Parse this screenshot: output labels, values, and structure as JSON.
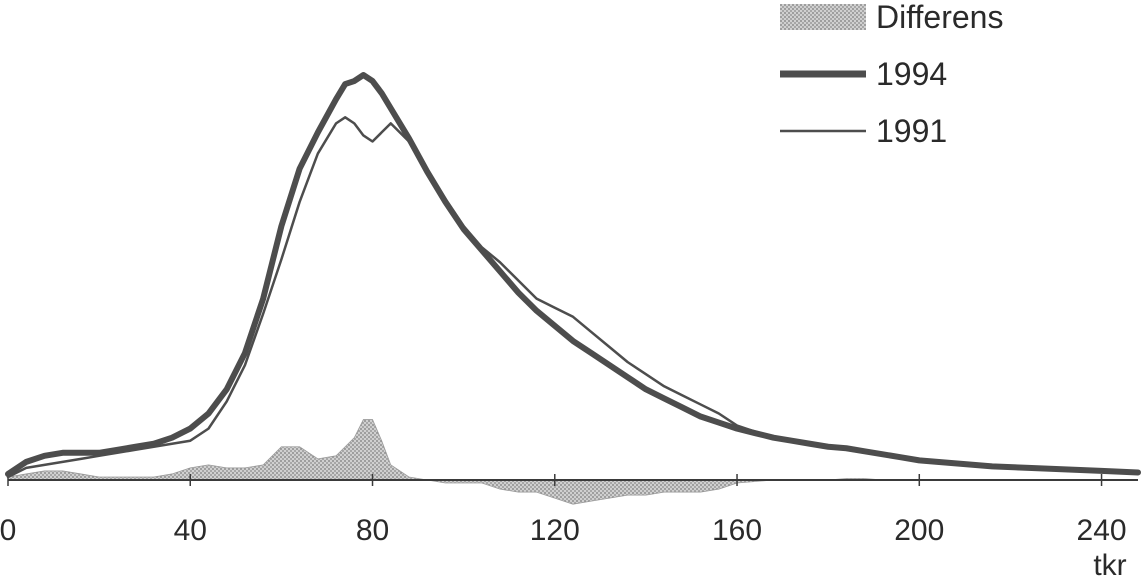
{
  "chart_data": {
    "type": "line",
    "xlabel": "tkr",
    "x_ticks": [
      "0",
      "40",
      "80",
      "120",
      "160",
      "200",
      "240"
    ],
    "xlim": [
      0,
      248
    ],
    "ylim": [
      -10,
      150
    ],
    "grid": false,
    "legend_position": "top-right",
    "x": [
      0,
      4,
      8,
      12,
      16,
      20,
      24,
      28,
      32,
      36,
      40,
      44,
      48,
      52,
      56,
      60,
      64,
      68,
      72,
      74,
      76,
      78,
      80,
      82,
      84,
      88,
      92,
      96,
      100,
      104,
      108,
      112,
      116,
      120,
      124,
      128,
      132,
      136,
      140,
      144,
      148,
      152,
      156,
      160,
      164,
      168,
      172,
      176,
      180,
      184,
      188,
      192,
      196,
      200,
      208,
      216,
      224,
      232,
      240,
      248
    ],
    "series": [
      {
        "name": "1994",
        "style": "thick",
        "color": "#4d4d4d",
        "values": [
          2,
          6,
          8,
          9,
          9,
          9,
          10,
          11,
          12,
          14,
          17,
          22,
          30,
          42,
          60,
          84,
          103,
          115,
          126,
          131,
          132,
          134,
          132,
          128,
          123,
          113,
          102,
          92,
          83,
          76,
          69,
          62,
          56,
          51,
          46,
          42,
          38,
          34,
          30,
          27,
          24,
          21,
          19,
          17,
          15.5,
          14,
          13,
          12,
          11,
          10.5,
          9.5,
          8.5,
          7.5,
          6.5,
          5.5,
          4.5,
          4,
          3.5,
          3,
          2.5
        ]
      },
      {
        "name": "1991",
        "style": "thin",
        "color": "#4d4d4d",
        "values": [
          1,
          4,
          5,
          6,
          7,
          8,
          9,
          10,
          11,
          12,
          13,
          17,
          26,
          38,
          55,
          73,
          92,
          108,
          118,
          120,
          118,
          114,
          112,
          115,
          118,
          112,
          102,
          93,
          84,
          77,
          72,
          66,
          60,
          57,
          54,
          49,
          44,
          39,
          35,
          31,
          28,
          25,
          22,
          18,
          16,
          14,
          13,
          12,
          11,
          10,
          9,
          8.5,
          7.5,
          6.5,
          5.5,
          4.5,
          4,
          3.5,
          3,
          2.5
        ]
      },
      {
        "name": "Differens",
        "style": "area",
        "color": "#b8b8b8",
        "values": [
          1,
          2,
          3,
          3,
          2,
          1,
          1,
          1,
          1,
          2,
          4,
          5,
          4,
          4,
          5,
          11,
          11,
          7,
          8,
          11,
          14,
          20,
          20,
          13,
          5,
          1,
          0,
          -1,
          -1,
          -1,
          -3,
          -4,
          -4,
          -6,
          -8,
          -7,
          -6,
          -5,
          -5,
          -4,
          -4,
          -4,
          -3,
          -1,
          -0.5,
          0,
          0,
          0,
          0,
          0.5,
          0.5,
          0,
          0,
          0,
          0,
          0,
          0,
          0,
          0,
          0
        ]
      }
    ]
  }
}
